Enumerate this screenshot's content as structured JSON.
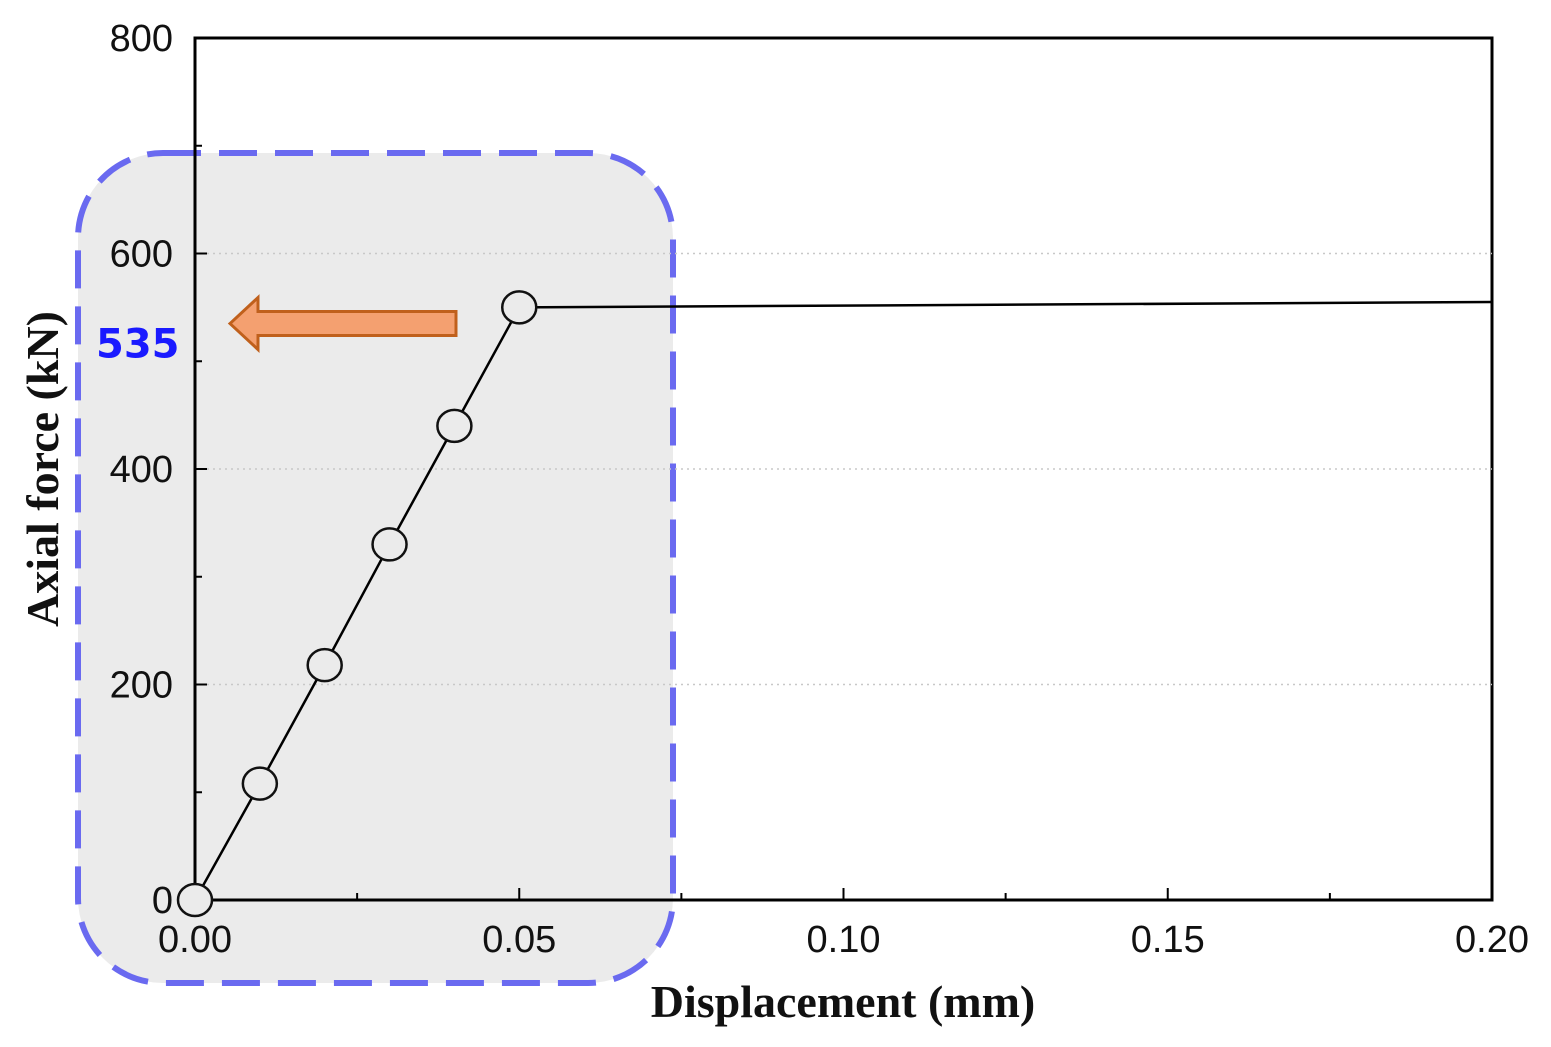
{
  "chart_data": {
    "type": "line",
    "title": "",
    "xlabel": "Displacement (mm)",
    "ylabel": "Axial force (kN)",
    "xlim": [
      0,
      0.2
    ],
    "ylim": [
      0,
      800
    ],
    "x_ticks": [
      "0.00",
      "0.05",
      "0.10",
      "0.15",
      "0.20"
    ],
    "y_ticks": [
      "0",
      "200",
      "400",
      "600",
      "800"
    ],
    "grid": "horizontal dotted",
    "legend": "none",
    "series": [
      {
        "marker": "open-circle",
        "color": "#000000",
        "x": [
          0.0,
          0.01,
          0.02,
          0.03,
          0.04,
          0.05
        ],
        "y": [
          0,
          108,
          218,
          330,
          440,
          550
        ]
      },
      {
        "marker": "none",
        "color": "#000000",
        "x": [
          0.05,
          0.2
        ],
        "y": [
          550,
          555
        ]
      }
    ],
    "annotations": [
      {
        "text": "535",
        "color": "#1a1aff",
        "y": 535,
        "arrow_color": "#f4a070"
      }
    ],
    "highlight": {
      "x": [
        0,
        0.073
      ],
      "y": [
        0,
        700
      ],
      "fill": "#ebebeb",
      "border": "#6a6af0"
    }
  }
}
